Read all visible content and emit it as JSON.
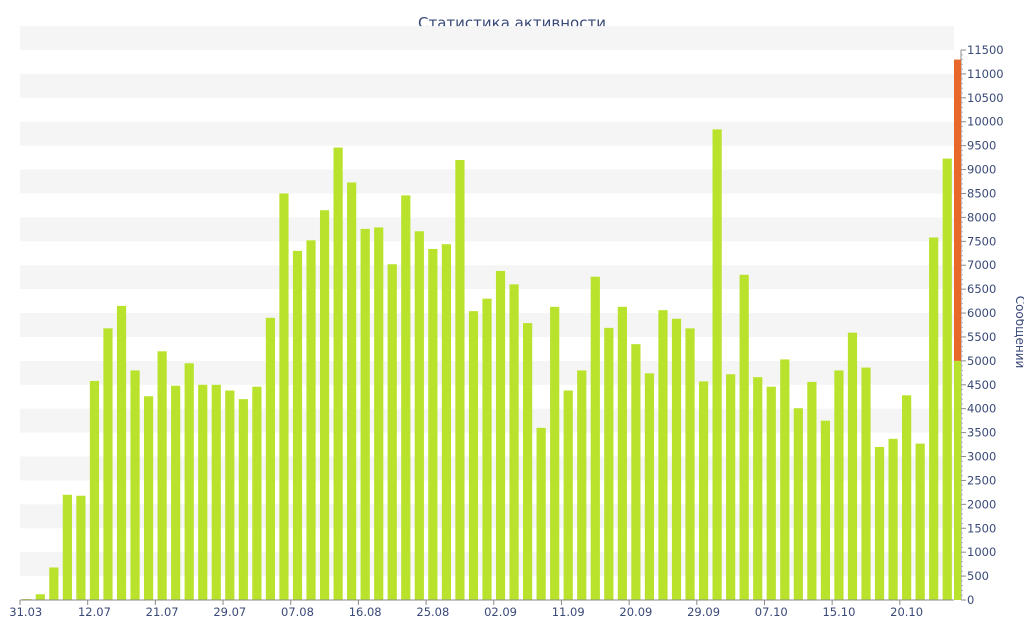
{
  "chart_data": {
    "type": "bar",
    "title": "Статистика активности",
    "ylabel": "Сообщений",
    "xlabel": "",
    "ylim": [
      0,
      11500
    ],
    "y_ticks": [
      0,
      500,
      1000,
      1500,
      2000,
      2500,
      3000,
      3500,
      4000,
      4500,
      5000,
      5500,
      6000,
      6500,
      7000,
      7500,
      8000,
      8500,
      9000,
      9500,
      10000,
      10500,
      11000,
      11500
    ],
    "x_tick_labels": [
      "31.03",
      "12.07",
      "21.07",
      "29.07",
      "07.08",
      "16.08",
      "25.08",
      "02.09",
      "11.09",
      "20.09",
      "29.09",
      "07.10",
      "15.10",
      "20.10"
    ],
    "values": [
      20,
      120,
      680,
      2200,
      2180,
      4580,
      5680,
      6150,
      4800,
      4260,
      5200,
      4480,
      4950,
      4500,
      4500,
      4380,
      4200,
      4460,
      5900,
      8500,
      7300,
      7520,
      8150,
      9460,
      8730,
      7760,
      7790,
      7020,
      8460,
      7710,
      7340,
      7440,
      9200,
      6040,
      6300,
      6880,
      6600,
      5790,
      3600,
      6130,
      4380,
      4800,
      6760,
      5690,
      6130,
      5350,
      4740,
      6060,
      5880,
      5680,
      4570,
      9840,
      4720,
      6800,
      4660,
      4460,
      5030,
      4010,
      4560,
      3750,
      4800,
      5590,
      4860,
      3200,
      3370,
      4280,
      3270,
      7580,
      9230
    ],
    "legend_scale": {
      "colors": [
        "#b9e22c",
        "#e8682a"
      ],
      "labels": []
    },
    "grid": "horizontal bands",
    "legend_placement": "right"
  }
}
